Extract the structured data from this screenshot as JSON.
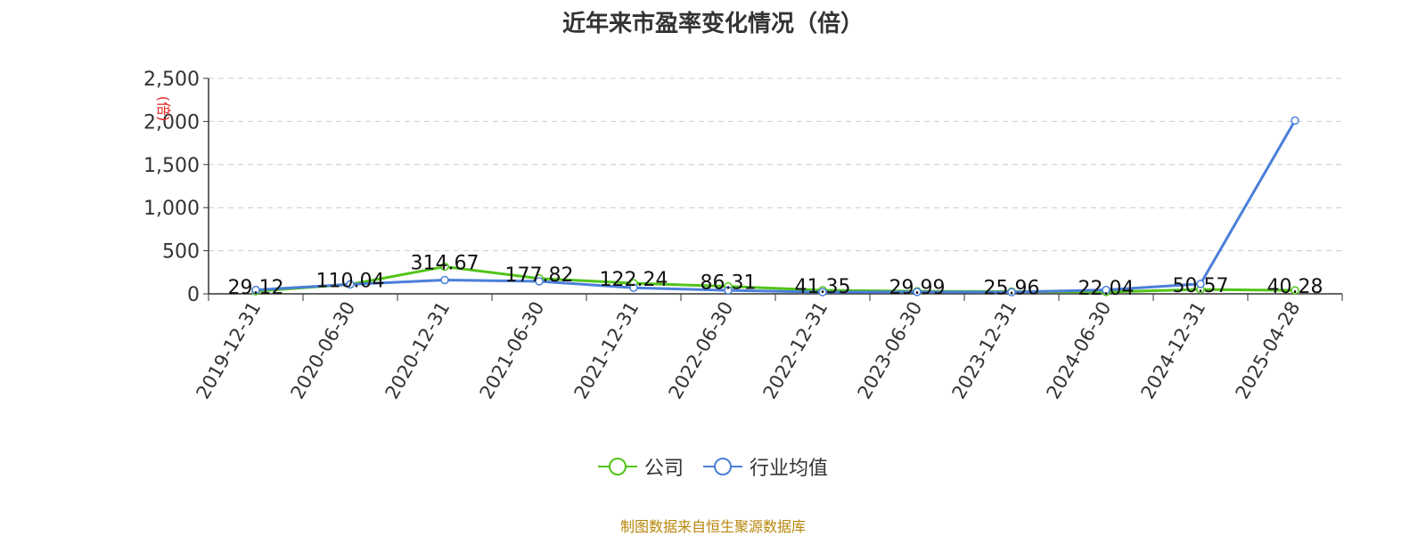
{
  "title": "近年来市盈率变化情况（倍）",
  "source_note": "制图数据来自恒生聚源数据库",
  "chart_data": {
    "type": "line",
    "title": "近年来市盈率变化情况（倍）",
    "ylabel": "(倍)",
    "ylim": [
      0,
      2500
    ],
    "yticks": [
      0,
      500,
      1000,
      1500,
      2000,
      2500
    ],
    "ytick_labels": [
      "0",
      "500",
      "1,000",
      "1,500",
      "2,000",
      "2,500"
    ],
    "grid": true,
    "legend_position": "bottom",
    "categories": [
      "2019-12-31",
      "2020-06-30",
      "2020-12-31",
      "2021-06-30",
      "2021-12-31",
      "2022-06-30",
      "2022-12-31",
      "2023-06-30",
      "2023-12-31",
      "2024-06-30",
      "2024-12-31",
      "2025-04-28"
    ],
    "series": [
      {
        "name": "公司",
        "color": "#52c41a",
        "values": [
          29.12,
          110.04,
          314.67,
          177.82,
          122.24,
          86.31,
          41.35,
          29.99,
          25.96,
          22.04,
          50.57,
          40.28
        ],
        "labels": [
          "29.12",
          "110.04",
          "314.67",
          "177.82",
          "122.24",
          "86.31",
          "41.35",
          "29.99",
          "25.96",
          "22.04",
          "50.57",
          "40.28"
        ]
      },
      {
        "name": "行业均值",
        "color": "#4a7fd9",
        "values": [
          45,
          110,
          160,
          145,
          70,
          40,
          20,
          22,
          20,
          45,
          115,
          2010
        ]
      }
    ]
  }
}
